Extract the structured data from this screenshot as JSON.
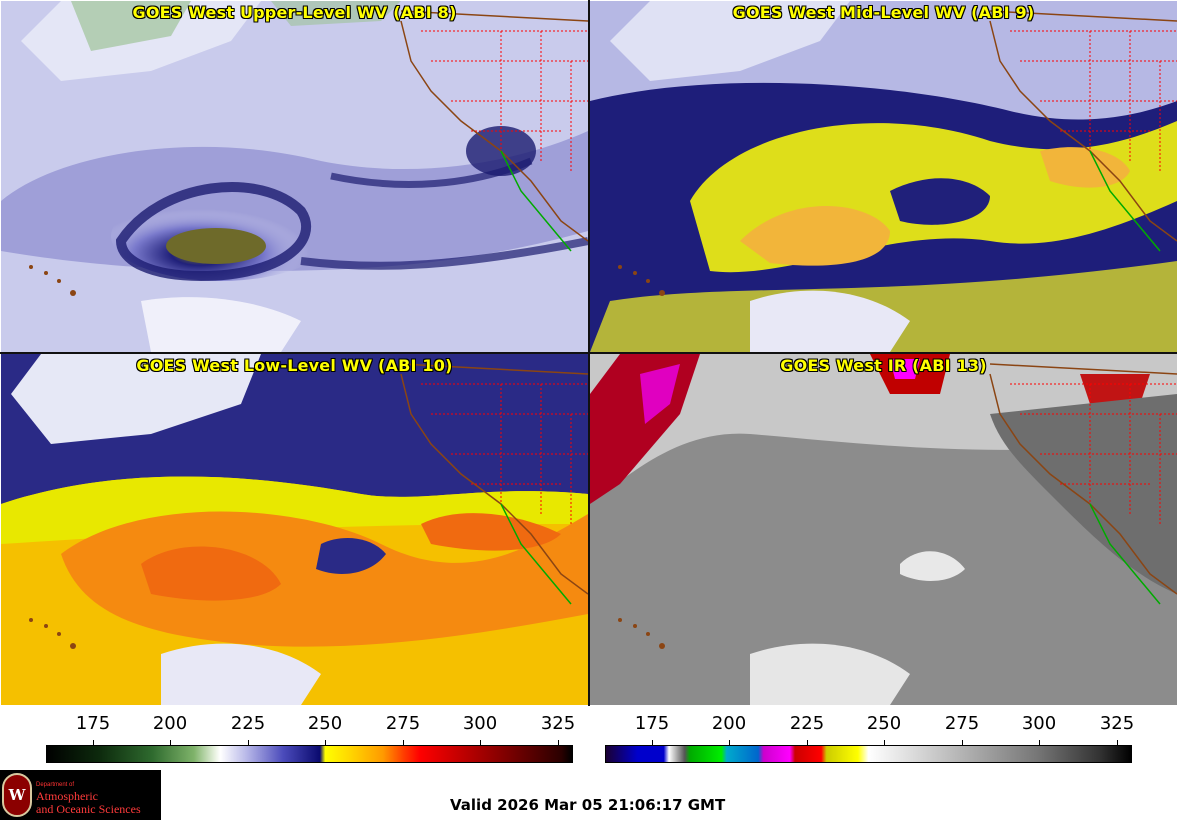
{
  "panels": [
    {
      "title": "GOES West Upper-Level WV (ABI 8)",
      "scheme": "wv-upper"
    },
    {
      "title": "GOES West Mid-Level WV (ABI 9)",
      "scheme": "wv-mid"
    },
    {
      "title": "GOES West Low-Level WV (ABI 10)",
      "scheme": "wv-low"
    },
    {
      "title": "GOES West IR (ABI 13)",
      "scheme": "ir"
    }
  ],
  "colorbars": [
    {
      "ticks": [
        "175",
        "200",
        "225",
        "250",
        "275",
        "300",
        "325"
      ],
      "min": 160,
      "max": 330
    },
    {
      "ticks": [
        "175",
        "200",
        "225",
        "250",
        "275",
        "300",
        "325"
      ],
      "min": 160,
      "max": 330
    }
  ],
  "logo": {
    "seal_letter": "W",
    "dept": "Department of",
    "line1": "Atmospheric",
    "line2": "and Oceanic Sciences"
  },
  "valid_text": "Valid 2026 Mar 05 21:06:17 GMT",
  "colors": {
    "title_text": "#ffff00",
    "wv_dry": "#0a0a6e",
    "wv_moist": "#cfd0ee",
    "state_borders": "#ff0000",
    "coastline": "#8b4513",
    "mexico_coast": "#00aa00"
  }
}
